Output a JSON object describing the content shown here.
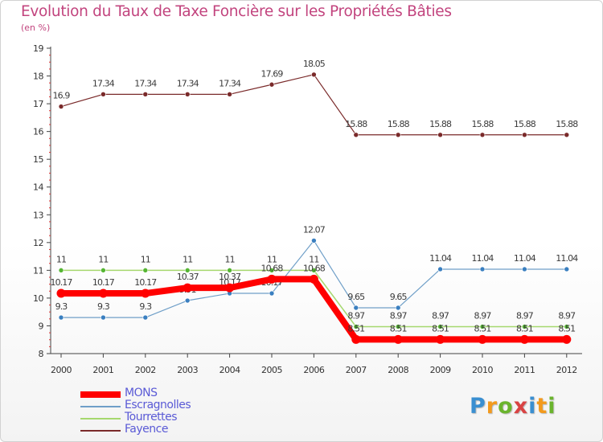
{
  "title": "Evolution du Taux de Taxe Foncière sur les Propriétés Bâties",
  "subtitle": "(en %)",
  "logo": {
    "text": "Proxiti",
    "letter_colors": [
      "#3a8fd1",
      "#f39a1d",
      "#6ab42d",
      "#d94343",
      "#3a8fd1",
      "#f39a1d",
      "#6ab42d"
    ]
  },
  "chart_data": {
    "type": "line",
    "title": "Evolution du Taux de Taxe Foncière sur les Propriétés Bâties",
    "ylabel": "(en %)",
    "xlabel": "",
    "ylim": [
      8,
      19
    ],
    "yticks": [
      8,
      9,
      10,
      11,
      12,
      13,
      14,
      15,
      16,
      17,
      18,
      19
    ],
    "x": [
      "2000",
      "2001",
      "2002",
      "2003",
      "2004",
      "2005",
      "2006",
      "2007",
      "2008",
      "2009",
      "2010",
      "2011",
      "2012"
    ],
    "grid": false,
    "legend_position": "bottom-left",
    "series": [
      {
        "name": "Fayence",
        "color": "#7a2a2a",
        "width": 1.2,
        "values": [
          16.9,
          17.34,
          17.34,
          17.34,
          17.34,
          17.69,
          18.05,
          15.88,
          15.88,
          15.88,
          15.88,
          15.88,
          15.88
        ],
        "labels": [
          "16.9",
          "17.34",
          "17.34",
          "17.34",
          "17.34",
          "17.69",
          "18.05",
          "15.88",
          "15.88",
          "15.88",
          "15.88",
          "15.88",
          "15.88"
        ]
      },
      {
        "name": "Tourrettes",
        "color": "#a6d86e",
        "marker": "#55b533",
        "width": 1.5,
        "values": [
          11,
          11,
          11,
          11,
          11,
          11,
          11,
          8.97,
          8.97,
          8.97,
          8.97,
          8.97,
          8.97
        ],
        "labels": [
          "11",
          "11",
          "11",
          "11",
          "11",
          "11",
          "11",
          "8.97",
          "8.97",
          "8.97",
          "8.97",
          "8.97",
          "8.97"
        ]
      },
      {
        "name": "Escragnolles",
        "color": "#6f9fc8",
        "marker": "#3a7fc0",
        "width": 1.2,
        "values": [
          9.3,
          9.3,
          9.3,
          9.91,
          10.17,
          10.17,
          12.07,
          9.65,
          9.65,
          11.04,
          11.04,
          11.04,
          11.04
        ],
        "labels": [
          "9.3",
          "9.3",
          "9.3",
          "9.91",
          "10.17",
          "10.17",
          "12.07",
          "9.65",
          "9.65",
          "11.04",
          "11.04",
          "11.04",
          "11.04"
        ]
      },
      {
        "name": "MONS",
        "color": "#ff0000",
        "width": 8,
        "values": [
          10.17,
          10.17,
          10.17,
          10.37,
          10.37,
          10.68,
          10.68,
          8.51,
          8.51,
          8.51,
          8.51,
          8.51,
          8.51
        ],
        "labels": [
          "10.17",
          "10.17",
          "10.17",
          "10.37",
          "10.37",
          "10.68",
          "10.68",
          "8.51",
          "8.51",
          "8.51",
          "8.51",
          "8.51",
          "8.51"
        ]
      }
    ],
    "legend_order": [
      "MONS",
      "Escragnolles",
      "Tourrettes",
      "Fayence"
    ],
    "legend_text_color": "#5a5ad6"
  }
}
